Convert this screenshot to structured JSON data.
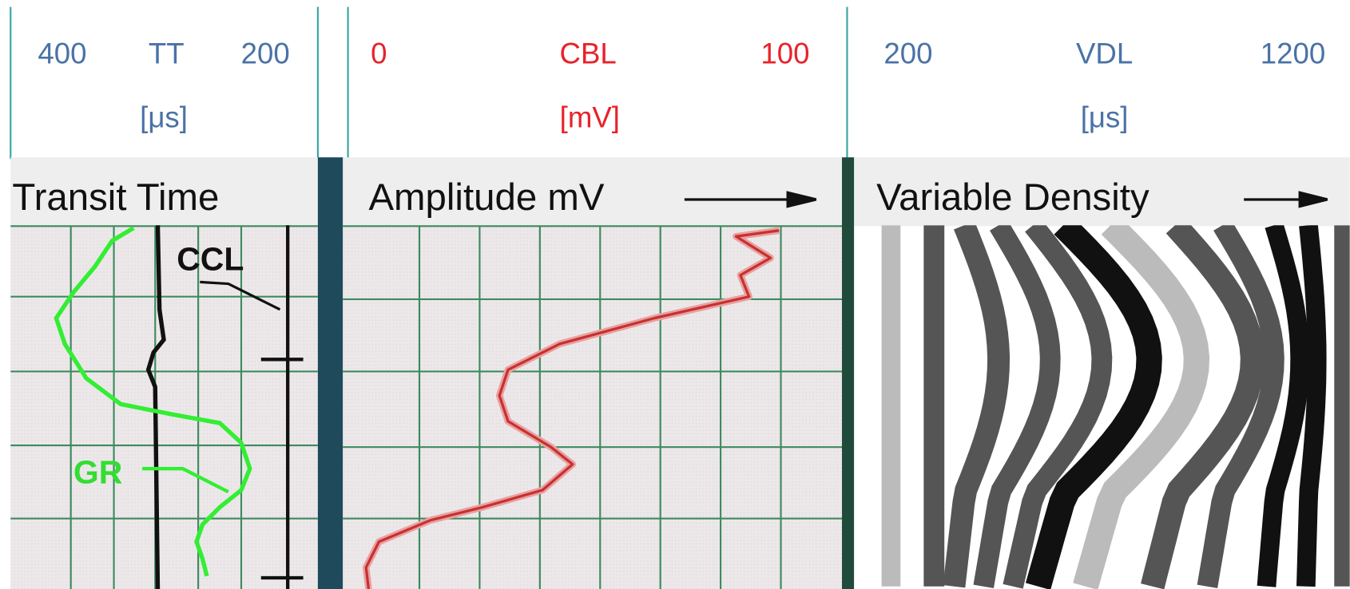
{
  "tracks": [
    {
      "left": "400",
      "name": "TT",
      "right": "200",
      "unit": "[μs]",
      "title": "Transit Time"
    },
    {
      "left": "0",
      "name": "CBL",
      "right": "100",
      "unit": "[mV]",
      "title": "Amplitude mV"
    },
    {
      "left": "200",
      "name": "VDL",
      "right": "1200",
      "unit": "[μs]",
      "title": "Variable Density"
    }
  ],
  "labels": {
    "ccl": "CCL",
    "gr": "GR"
  }
}
